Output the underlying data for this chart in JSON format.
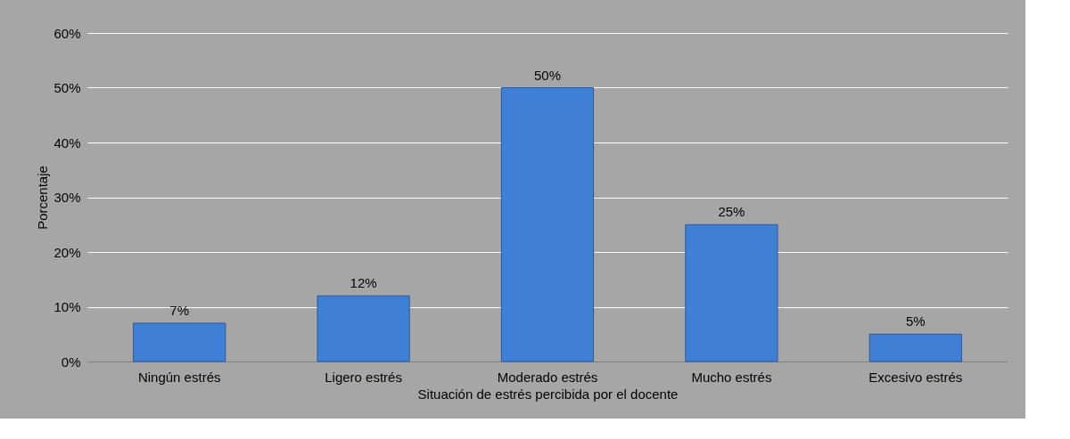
{
  "chart_data": {
    "type": "bar",
    "xlabel": "Situación de estrés percibida por el docente",
    "ylabel": "Porcentaje",
    "categories": [
      "Ningún estrés",
      "Ligero estrés",
      "Moderado estrés",
      "Mucho estrés",
      "Excesivo estrés"
    ],
    "values": [
      7,
      12,
      50,
      25,
      5
    ],
    "value_labels": [
      "7%",
      "12%",
      "50%",
      "25%",
      "5%"
    ],
    "color": "#3f7fd6",
    "ylim": [
      0,
      60
    ],
    "yticks": [
      {
        "value": 0,
        "label": "0%"
      },
      {
        "value": 10,
        "label": "10%"
      },
      {
        "value": 20,
        "label": "20%"
      },
      {
        "value": 30,
        "label": "30%"
      },
      {
        "value": 40,
        "label": "40%"
      },
      {
        "value": 50,
        "label": "50%"
      },
      {
        "value": 60,
        "label": "60%"
      }
    ],
    "grid": "y"
  }
}
